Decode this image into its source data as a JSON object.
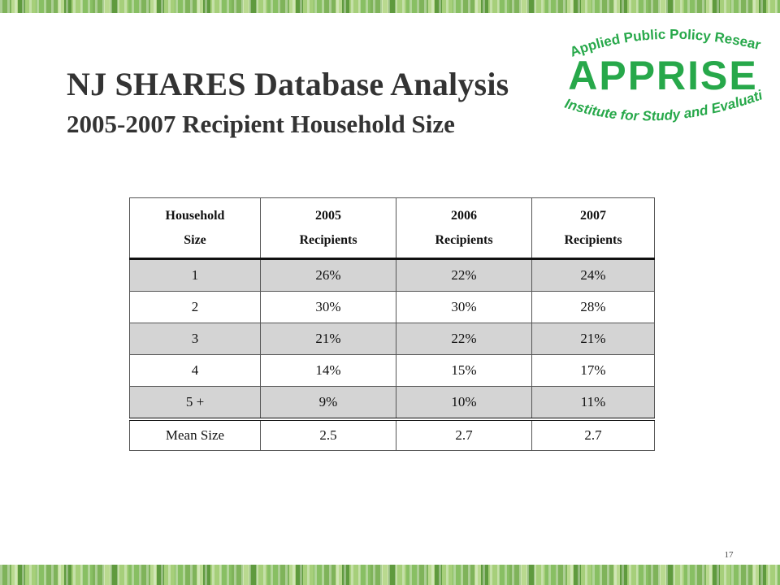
{
  "slide": {
    "title": "NJ SHARES Database Analysis",
    "subtitle": "2005-2007 Recipient Household Size",
    "page_number": "17"
  },
  "logo": {
    "top_text": "Applied Public Policy Research",
    "name": "APPRISE",
    "bottom_text": "Institute for Study and Evaluation",
    "color": "#27a84a"
  },
  "table": {
    "headers": [
      [
        "Household",
        "Size"
      ],
      [
        "2005",
        "Recipients"
      ],
      [
        "2006",
        "Recipients"
      ],
      [
        "2007",
        "Recipients"
      ]
    ],
    "rows": [
      [
        "1",
        "26%",
        "22%",
        "24%"
      ],
      [
        "2",
        "30%",
        "30%",
        "28%"
      ],
      [
        "3",
        "21%",
        "22%",
        "21%"
      ],
      [
        "4",
        "14%",
        "15%",
        "17%"
      ],
      [
        "5 +",
        "9%",
        "10%",
        "11%"
      ]
    ],
    "mean_row": [
      "Mean Size",
      "2.5",
      "2.7",
      "2.7"
    ]
  }
}
